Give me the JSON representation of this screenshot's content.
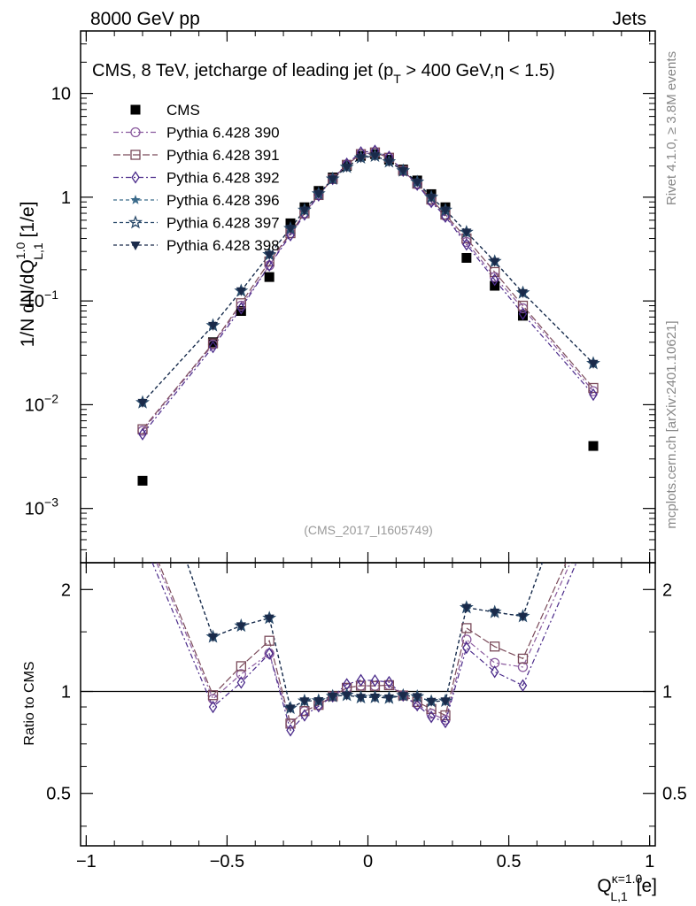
{
  "header": {
    "left": "8000 GeV pp",
    "right": "Jets"
  },
  "title": "CMS, 8 TeV, jetcharge of leading jet (p",
  "title_sub": "T",
  "title_rest": " > 400 GeV,η < 1.5)",
  "watermark": "(CMS_2017_I1605749)",
  "side": {
    "rivet": "Rivet 4.1.0, ≥ 3.8M events",
    "mcplots": "mcplots.cern.ch [arXiv:2401.10621]"
  },
  "chart_data": {
    "type": "scatter",
    "x": [
      -0.8,
      -0.55,
      -0.45,
      -0.35,
      -0.275,
      -0.225,
      -0.175,
      -0.125,
      -0.075,
      -0.025,
      0.025,
      0.075,
      0.125,
      0.175,
      0.225,
      0.275,
      0.35,
      0.45,
      0.55,
      0.8
    ],
    "main": {
      "ylabel": "1/N dN/dQ",
      "ylabel_sup": "1.0",
      "ylabel_sub": "L,1",
      "ylabel_unit": " [1/e]",
      "yscale": "log",
      "ylim": [
        0.0003,
        40
      ],
      "ytick_values": [
        0.001,
        0.01,
        0.1,
        1,
        10
      ],
      "ytick_labels": [
        {
          "base": "10",
          "sup": "−3"
        },
        {
          "base": "10",
          "sup": "−2"
        },
        {
          "base": "10",
          "sup": "−1"
        },
        {
          "base": "1",
          "sup": ""
        },
        {
          "base": "10",
          "sup": ""
        }
      ]
    },
    "ratio": {
      "ylabel": "Ratio to CMS",
      "yscale": "log",
      "ylim": [
        0.35,
        2.4
      ],
      "ytick_values": [
        0.5,
        1,
        2
      ],
      "ytick_labels": [
        "0.5",
        "1",
        "2"
      ],
      "reference": 1
    },
    "xlim": [
      -1.02,
      1.02
    ],
    "xtick_values": [
      -1,
      -0.5,
      0,
      0.5,
      1
    ],
    "xtick_labels": [
      "−1",
      "−0.5",
      "0",
      "0.5",
      "1"
    ],
    "xlabel": "Q",
    "xlabel_sup": "κ=1.0",
    "xlabel_sub": "L,1",
    "xlabel_unit": " [e]",
    "series": [
      {
        "name": "CMS",
        "marker": "square-filled",
        "color": "#000000",
        "dash": "none",
        "values": [
          0.00185,
          0.04,
          0.08,
          0.17,
          0.56,
          0.8,
          1.15,
          1.55,
          2.0,
          2.5,
          2.6,
          2.3,
          1.85,
          1.45,
          1.07,
          0.8,
          0.26,
          0.14,
          0.072,
          0.004
        ]
      },
      {
        "name": "Pythia 6.428 390",
        "marker": "circle-open",
        "color": "#8a5a9e",
        "dash": "6,3,2,3",
        "values": [
          0.0056,
          0.038,
          0.09,
          0.22,
          0.45,
          0.7,
          1.05,
          1.5,
          2.05,
          2.6,
          2.7,
          2.4,
          1.8,
          1.33,
          0.92,
          0.66,
          0.37,
          0.17,
          0.085,
          0.0135
        ]
      },
      {
        "name": "Pythia 6.428 391",
        "marker": "square-open",
        "color": "#7a4a5a",
        "dash": "8,3",
        "values": [
          0.0058,
          0.039,
          0.095,
          0.24,
          0.45,
          0.7,
          1.05,
          1.5,
          2.05,
          2.6,
          2.7,
          2.4,
          1.8,
          1.35,
          0.95,
          0.68,
          0.4,
          0.19,
          0.09,
          0.0145
        ]
      },
      {
        "name": "Pythia 6.428 392",
        "marker": "diamond-open",
        "color": "#4a2a8a",
        "dash": "6,3,2,3",
        "values": [
          0.0052,
          0.036,
          0.085,
          0.22,
          0.43,
          0.68,
          1.04,
          1.5,
          2.1,
          2.7,
          2.8,
          2.45,
          1.8,
          1.32,
          0.9,
          0.65,
          0.35,
          0.16,
          0.075,
          0.0125
        ]
      },
      {
        "name": "Pythia 6.428 396",
        "marker": "star-filled",
        "color": "#3a6a8a",
        "dash": "4,3",
        "values": [
          0.0105,
          0.058,
          0.125,
          0.28,
          0.5,
          0.75,
          1.08,
          1.5,
          1.95,
          2.4,
          2.5,
          2.2,
          1.8,
          1.4,
          1.0,
          0.75,
          0.46,
          0.24,
          0.12,
          0.025
        ]
      },
      {
        "name": "Pythia 6.428 397",
        "marker": "star-open",
        "color": "#2a4a6a",
        "dash": "4,3",
        "values": [
          0.0105,
          0.058,
          0.125,
          0.28,
          0.5,
          0.75,
          1.08,
          1.5,
          1.95,
          2.4,
          2.5,
          2.2,
          1.8,
          1.4,
          1.0,
          0.75,
          0.46,
          0.24,
          0.12,
          0.025
        ]
      },
      {
        "name": "Pythia 6.428 398",
        "marker": "triangle-down-filled",
        "color": "#1a2a4a",
        "dash": "4,3",
        "values": [
          0.0105,
          0.058,
          0.125,
          0.28,
          0.5,
          0.75,
          1.08,
          1.5,
          1.95,
          2.4,
          2.5,
          2.2,
          1.8,
          1.4,
          1.0,
          0.75,
          0.46,
          0.24,
          0.12,
          0.025
        ]
      }
    ]
  }
}
